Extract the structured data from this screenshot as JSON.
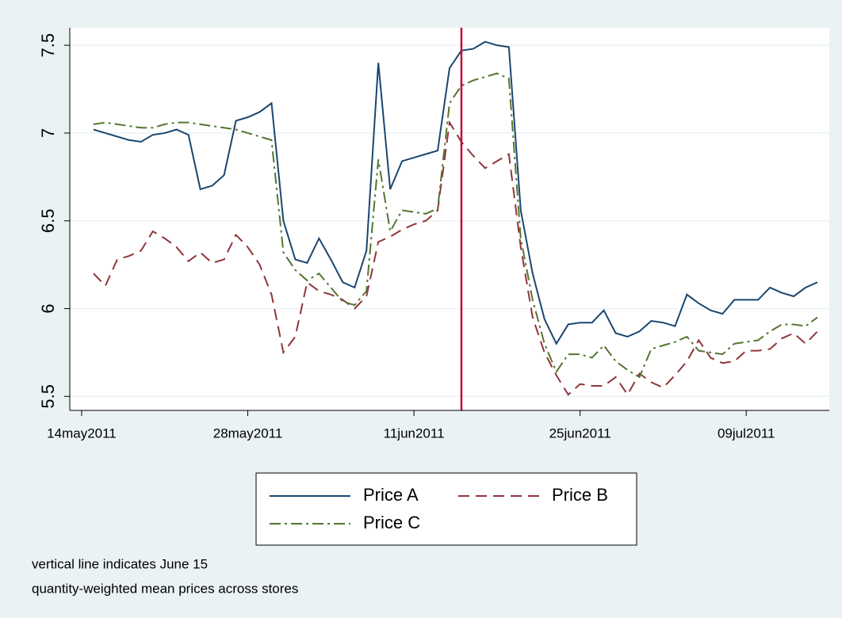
{
  "chart_data": {
    "type": "line",
    "x": [
      "2011-05-15",
      "2011-05-16",
      "2011-05-17",
      "2011-05-18",
      "2011-05-19",
      "2011-05-20",
      "2011-05-21",
      "2011-05-22",
      "2011-05-23",
      "2011-05-24",
      "2011-05-25",
      "2011-05-26",
      "2011-05-27",
      "2011-05-28",
      "2011-05-29",
      "2011-05-30",
      "2011-05-31",
      "2011-06-01",
      "2011-06-02",
      "2011-06-03",
      "2011-06-04",
      "2011-06-05",
      "2011-06-06",
      "2011-06-07",
      "2011-06-08",
      "2011-06-09",
      "2011-06-10",
      "2011-06-11",
      "2011-06-12",
      "2011-06-13",
      "2011-06-14",
      "2011-06-15",
      "2011-06-16",
      "2011-06-17",
      "2011-06-18",
      "2011-06-19",
      "2011-06-20",
      "2011-06-21",
      "2011-06-22",
      "2011-06-23",
      "2011-06-24",
      "2011-06-25",
      "2011-06-26",
      "2011-06-27",
      "2011-06-28",
      "2011-06-29",
      "2011-06-30",
      "2011-07-01",
      "2011-07-02",
      "2011-07-03",
      "2011-07-04",
      "2011-07-05",
      "2011-07-06",
      "2011-07-07",
      "2011-07-08",
      "2011-07-09",
      "2011-07-10",
      "2011-07-11",
      "2011-07-12",
      "2011-07-13",
      "2011-07-14",
      "2011-07-15"
    ],
    "series": [
      {
        "name": "Price A",
        "color": "#1a476f",
        "dash": "none",
        "values": [
          7.02,
          7.0,
          6.98,
          6.96,
          6.95,
          6.99,
          7.0,
          7.02,
          6.99,
          6.68,
          6.7,
          6.76,
          7.07,
          7.09,
          7.12,
          7.17,
          6.5,
          6.28,
          6.26,
          6.4,
          6.28,
          6.15,
          6.12,
          6.33,
          7.4,
          6.68,
          6.84,
          6.86,
          6.88,
          6.9,
          7.37,
          7.47,
          7.48,
          7.52,
          7.5,
          7.49,
          6.56,
          6.2,
          5.94,
          5.8,
          5.91,
          5.92,
          5.92,
          5.99,
          5.86,
          5.84,
          5.87,
          5.93,
          5.92,
          5.9,
          6.08,
          6.03,
          5.99,
          5.97,
          6.05,
          6.05,
          6.05,
          6.12,
          6.09,
          6.07,
          6.12,
          6.15
        ]
      },
      {
        "name": "Price B",
        "color": "#90353b",
        "dash": "14,8",
        "values": [
          6.2,
          6.13,
          6.28,
          6.3,
          6.33,
          6.44,
          6.4,
          6.35,
          6.27,
          6.32,
          6.26,
          6.28,
          6.42,
          6.35,
          6.25,
          6.08,
          5.75,
          5.84,
          6.15,
          6.1,
          6.08,
          6.05,
          6.0,
          6.07,
          6.38,
          6.41,
          6.45,
          6.48,
          6.5,
          6.56,
          7.06,
          6.95,
          6.87,
          6.8,
          6.84,
          6.88,
          6.35,
          5.95,
          5.75,
          5.62,
          5.51,
          5.57,
          5.56,
          5.56,
          5.61,
          5.51,
          5.63,
          5.58,
          5.55,
          5.62,
          5.7,
          5.82,
          5.72,
          5.69,
          5.7,
          5.76,
          5.76,
          5.77,
          5.83,
          5.86,
          5.8,
          5.87
        ]
      },
      {
        "name": "Price C",
        "color": "#55752f",
        "dash": "14,5,3,5",
        "values": [
          7.05,
          7.06,
          7.05,
          7.04,
          7.03,
          7.03,
          7.05,
          7.06,
          7.06,
          7.05,
          7.04,
          7.03,
          7.02,
          7.0,
          6.98,
          6.96,
          6.32,
          6.22,
          6.16,
          6.2,
          6.12,
          6.04,
          6.02,
          6.1,
          6.85,
          6.44,
          6.56,
          6.55,
          6.54,
          6.57,
          7.17,
          7.27,
          7.3,
          7.32,
          7.34,
          7.31,
          6.4,
          6.05,
          5.8,
          5.64,
          5.74,
          5.74,
          5.72,
          5.79,
          5.7,
          5.65,
          5.61,
          5.77,
          5.79,
          5.81,
          5.84,
          5.76,
          5.75,
          5.74,
          5.8,
          5.81,
          5.82,
          5.87,
          5.91,
          5.91,
          5.9,
          5.95
        ]
      }
    ],
    "xlim": [
      "2011-05-13",
      "2011-07-16"
    ],
    "xticks": [
      {
        "value": "2011-05-14",
        "label": "14may2011"
      },
      {
        "value": "2011-05-28",
        "label": "28may2011"
      },
      {
        "value": "2011-06-11",
        "label": "11jun2011"
      },
      {
        "value": "2011-06-25",
        "label": "25jun2011"
      },
      {
        "value": "2011-07-09",
        "label": "09jul2011"
      }
    ],
    "ylim": [
      5.42,
      7.6
    ],
    "yticks": [
      5.5,
      6,
      6.5,
      7,
      7.5
    ],
    "grid": true,
    "reference_line": {
      "x": "2011-06-15",
      "color": "#c10534"
    },
    "legend": "bottom",
    "notes": [
      "vertical line indicates June 15",
      "quantity-weighted mean prices across stores"
    ]
  }
}
